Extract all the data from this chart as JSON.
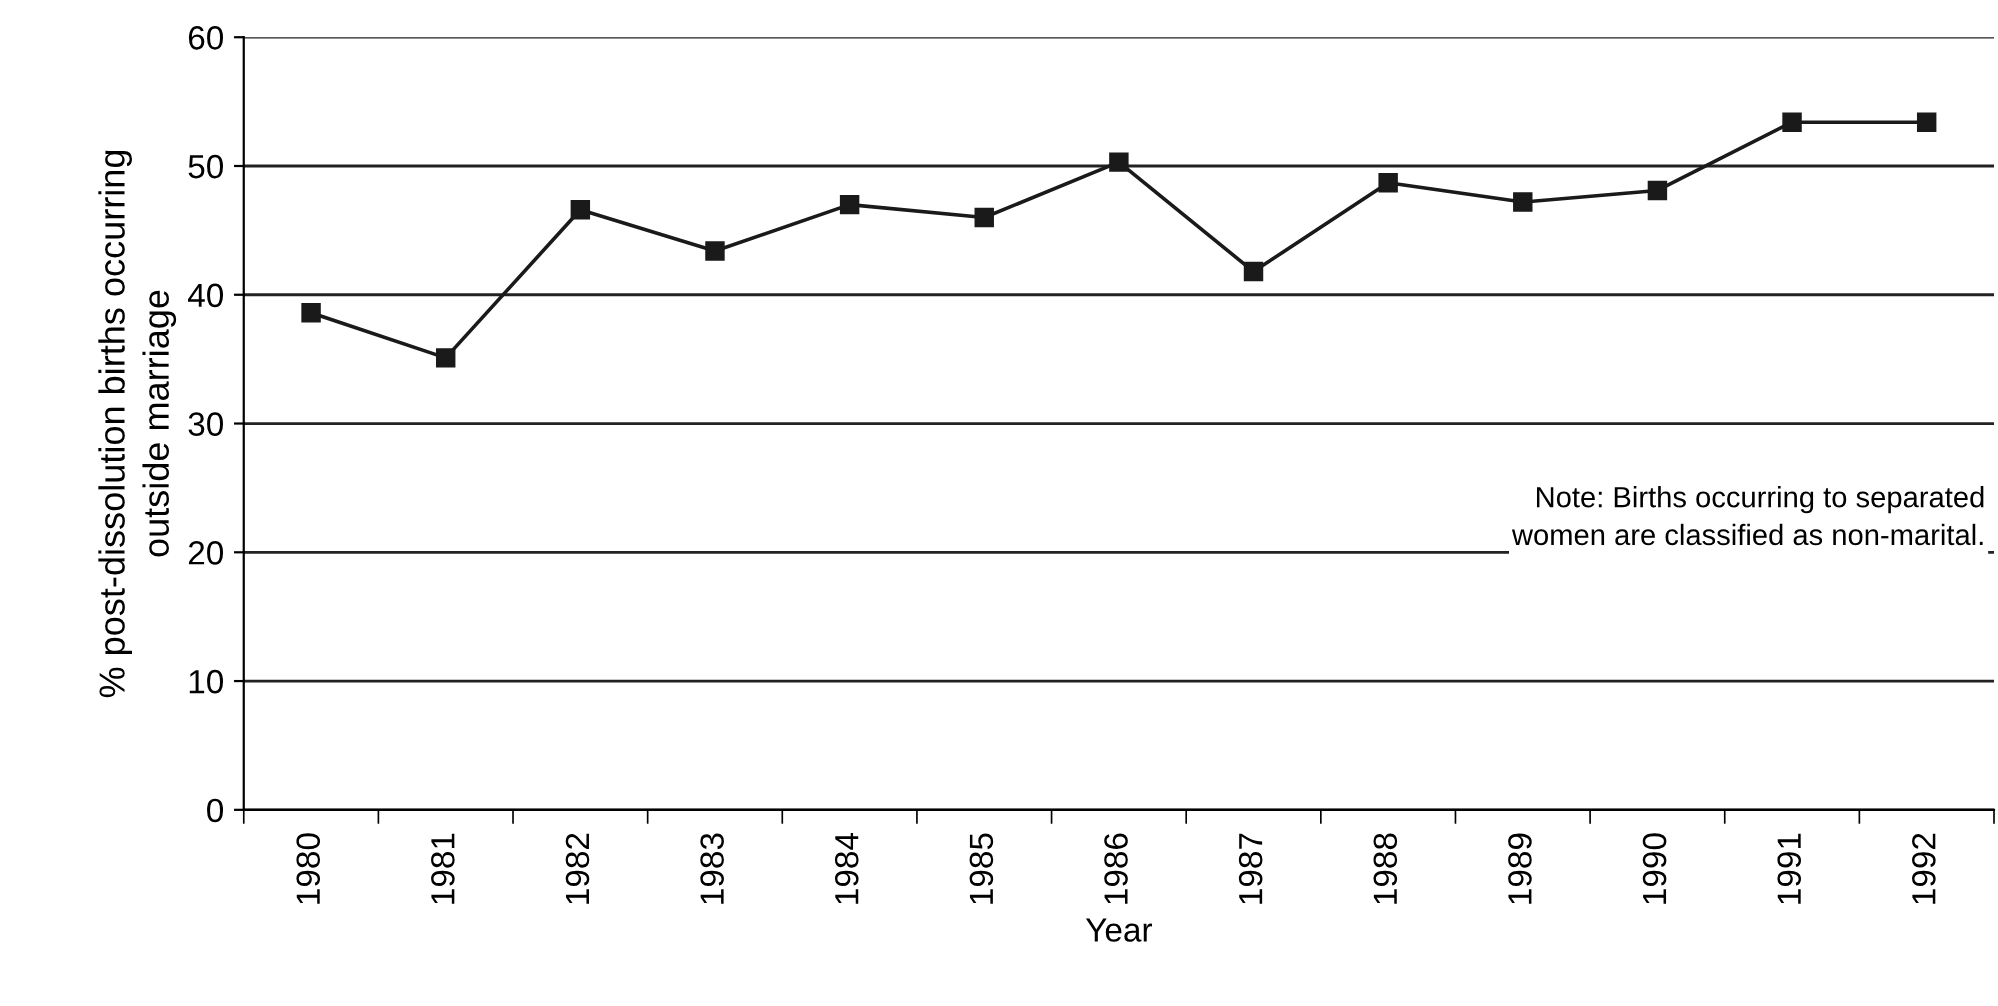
{
  "chart_data": {
    "type": "line",
    "xlabel": "Year",
    "ylabel": "% post-dissolution births occurring\noutside marriage",
    "categories": [
      "1980",
      "1981",
      "1982",
      "1983",
      "1984",
      "1985",
      "1986",
      "1987",
      "1988",
      "1989",
      "1990",
      "1991",
      "1992"
    ],
    "series": [
      {
        "color": "#1a1a1a",
        "values": [
          38.6,
          35.1,
          46.6,
          43.4,
          47.0,
          46.0,
          50.3,
          41.8,
          48.7,
          47.2,
          48.1,
          53.4,
          53.4
        ]
      }
    ],
    "ylim": [
      0,
      60
    ],
    "yticks": [
      0,
      10,
      20,
      30,
      40,
      50,
      60
    ],
    "grid": "y",
    "marker": "square",
    "line_style": "solid",
    "legend": false,
    "annotations": [
      "Note: Births occurring to separated\nwomen are classified as non-marital."
    ]
  }
}
